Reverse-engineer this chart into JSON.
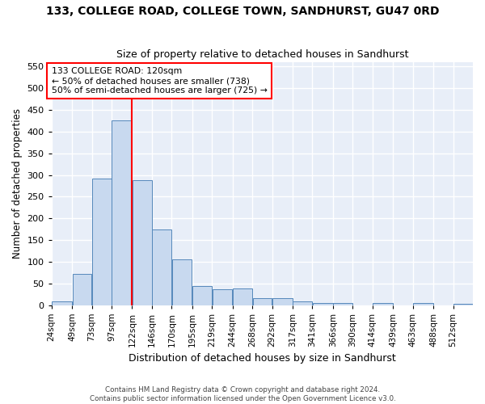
{
  "title": "133, COLLEGE ROAD, COLLEGE TOWN, SANDHURST, GU47 0RD",
  "subtitle": "Size of property relative to detached houses in Sandhurst",
  "xlabel": "Distribution of detached houses by size in Sandhurst",
  "ylabel": "Number of detached properties",
  "bar_color": "#c8d9ef",
  "bar_edge_color": "#5588bb",
  "background_color": "#e8eef8",
  "grid_color": "#ffffff",
  "red_line_x": 122,
  "annotation_title": "133 COLLEGE ROAD: 120sqm",
  "annotation_line1": "← 50% of detached houses are smaller (738)",
  "annotation_line2": "50% of semi-detached houses are larger (725) →",
  "footer_line1": "Contains HM Land Registry data © Crown copyright and database right 2024.",
  "footer_line2": "Contains public sector information licensed under the Open Government Licence v3.0.",
  "bin_labels": [
    "24sqm",
    "49sqm",
    "73sqm",
    "97sqm",
    "122sqm",
    "146sqm",
    "170sqm",
    "195sqm",
    "219sqm",
    "244sqm",
    "268sqm",
    "292sqm",
    "317sqm",
    "341sqm",
    "366sqm",
    "390sqm",
    "414sqm",
    "439sqm",
    "463sqm",
    "488sqm",
    "512sqm"
  ],
  "bins": [
    24,
    49,
    73,
    97,
    122,
    146,
    170,
    195,
    219,
    244,
    268,
    292,
    317,
    341,
    366,
    390,
    414,
    439,
    463,
    488,
    512
  ],
  "counts": [
    8,
    71,
    292,
    425,
    288,
    174,
    105,
    44,
    37,
    38,
    15,
    15,
    8,
    5,
    4,
    0,
    4,
    0,
    4,
    0,
    3
  ],
  "ylim": [
    0,
    560
  ],
  "yticks": [
    0,
    50,
    100,
    150,
    200,
    250,
    300,
    350,
    400,
    450,
    500,
    550
  ]
}
